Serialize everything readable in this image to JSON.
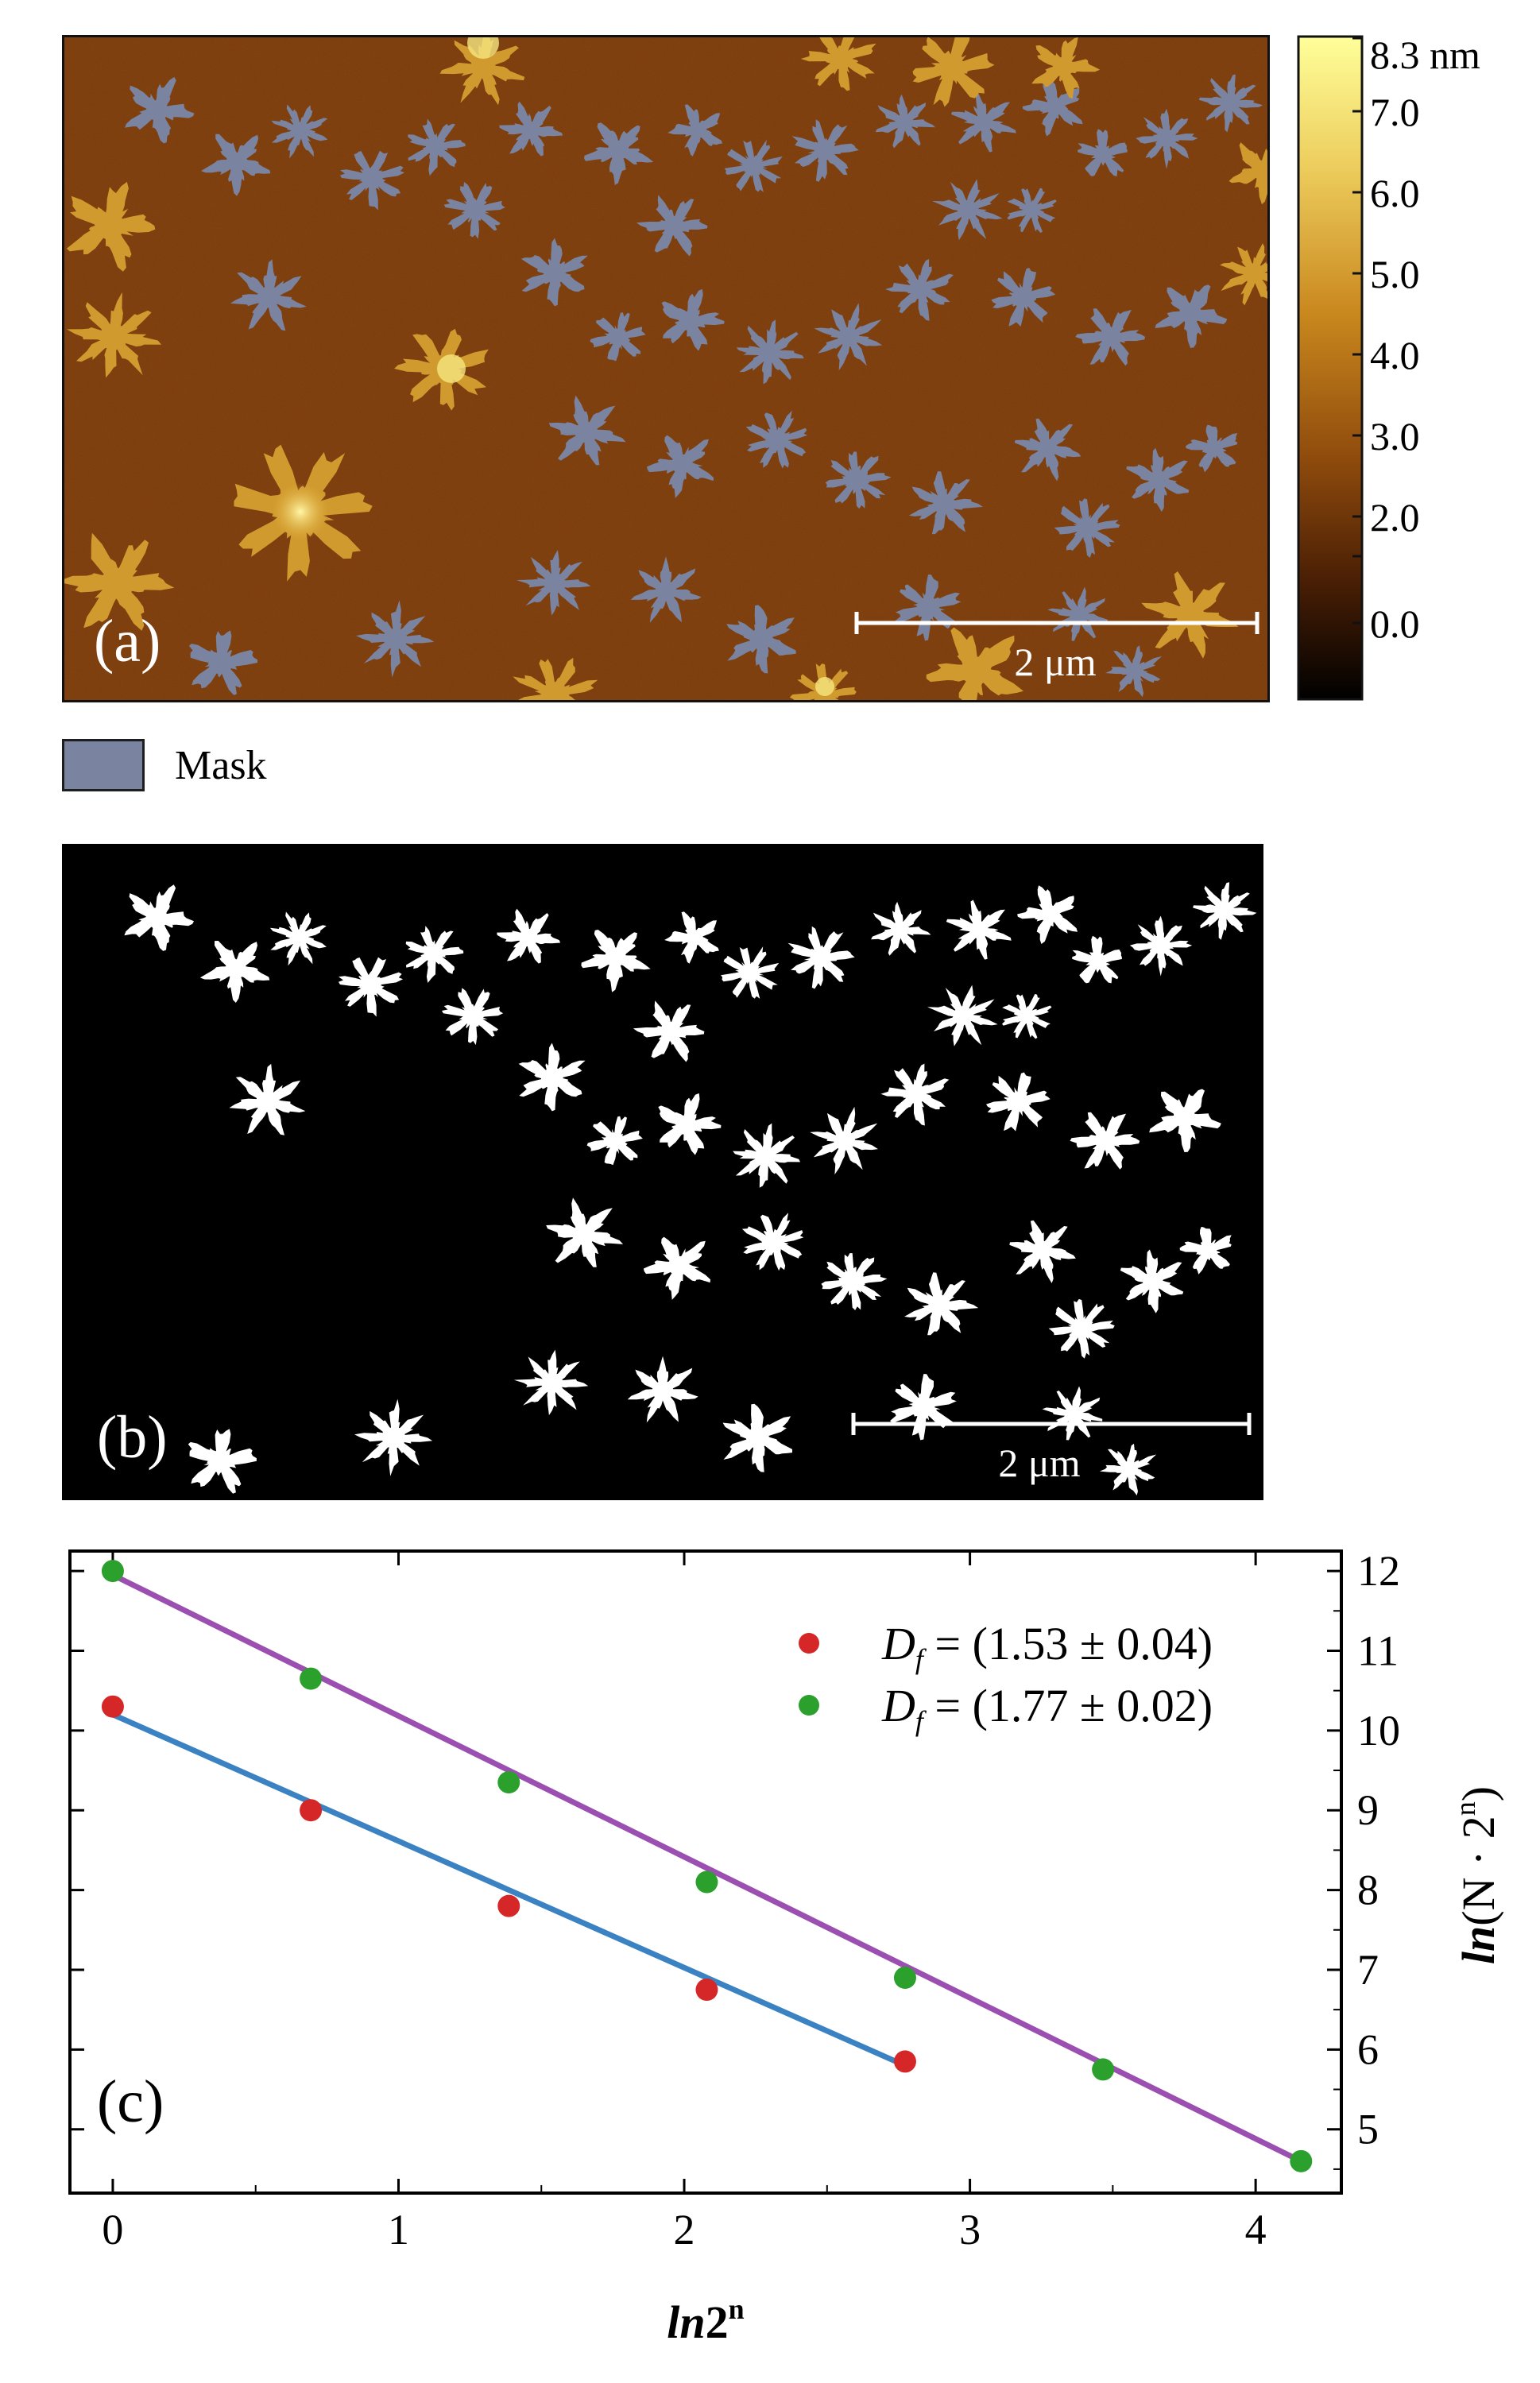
{
  "panel_a": {
    "label": "(a)",
    "scale_bar_label": "2 μm",
    "colors": {
      "background": "#7b3a0b",
      "mask": "#7a84a0",
      "island": "#d19a2e",
      "island_hot": "#f6e680"
    },
    "colorbar": {
      "unit_label": "8.3 nm",
      "tick_labels": [
        "7.0",
        "6.0",
        "5.0",
        "4.0",
        "3.0",
        "2.0",
        "0.0"
      ],
      "gradient_colors": [
        "#ffff9a",
        "#eccc5c",
        "#c9871e",
        "#8e4a0c",
        "#4a1f05",
        "#000000"
      ]
    }
  },
  "mask_legend": {
    "label": "Mask",
    "color": "#7a84a0"
  },
  "panel_b": {
    "label": "(b)",
    "scale_bar_label": "2 μm",
    "colors": {
      "background": "#000000",
      "shape": "#ffffff"
    }
  },
  "panel_c": {
    "label": "(c)",
    "chart_data": {
      "type": "scatter",
      "xlabel_main": "ln",
      "xlabel_tail": "2",
      "xlabel_sup": "n",
      "ylabel_main": "ln",
      "ylabel_tail": "(N · 2",
      "ylabel_sup": "n",
      "ylabel_close": ")",
      "xlim": [
        -0.15,
        4.3
      ],
      "ylim": [
        4.2,
        12.25
      ],
      "x_ticks": [
        0,
        1,
        2,
        3,
        4
      ],
      "y_ticks": [
        5,
        6,
        7,
        8,
        9,
        10,
        11,
        12
      ],
      "series": [
        {
          "legend_prefix": "D",
          "legend_sub": "f",
          "legend_value": " = (1.53 ± 0.04)",
          "color": "#d62728",
          "line_color": "#3a82c2",
          "x": [
            0,
            0.693,
            1.386,
            2.079,
            2.773
          ],
          "y": [
            10.3,
            9.0,
            7.8,
            6.75,
            5.85
          ],
          "fit": [
            [
              0,
              10.2
            ],
            [
              2.773,
              5.8
            ]
          ]
        },
        {
          "legend_prefix": "D",
          "legend_sub": "f",
          "legend_value": " = (1.77 ± 0.02)",
          "color": "#2ca02c",
          "line_color": "#9b4fb0",
          "x": [
            0,
            0.693,
            1.386,
            2.079,
            2.773,
            3.466,
            4.159
          ],
          "y": [
            12.0,
            10.65,
            9.35,
            8.1,
            6.9,
            5.75,
            4.6
          ],
          "fit": [
            [
              0,
              11.95
            ],
            [
              4.159,
              4.6
            ]
          ]
        }
      ]
    }
  }
}
